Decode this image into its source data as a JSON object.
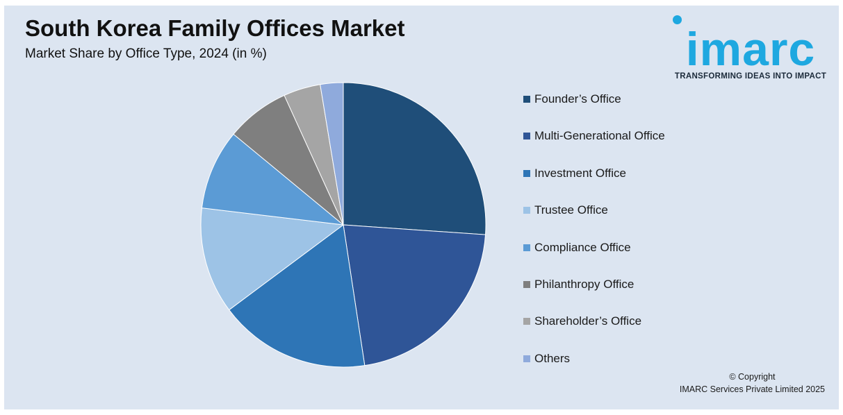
{
  "header": {
    "title": "South Korea Family Offices Market",
    "subtitle": "Market Share by Office Type, 2024 (in %)"
  },
  "logo": {
    "word": "imarc",
    "tagline": "TRANSFORMING IDEAS INTO IMPACT",
    "color": "#1ea8e0"
  },
  "footer": {
    "copyright_line1": "© Copyright",
    "copyright_line2": "IMARC Services Private Limited 2025"
  },
  "colors": {
    "background": "#dce5f1",
    "slice_border": "#ffffff"
  },
  "chart_data": {
    "type": "pie",
    "title": "South Korea Family Offices Market",
    "subtitle": "Market Share by Office Type, 2024 (in %)",
    "legend_position": "right",
    "start_angle_deg": 0,
    "direction": "clockwise",
    "categories": [
      "Founder’s Office",
      "Multi-Generational Office",
      "Investment Office",
      "Trustee Office",
      "Compliance Office",
      "Philanthropy Office",
      "Shareholder’s Office",
      "Others"
    ],
    "values": [
      26.1,
      21.5,
      17.2,
      12.1,
      9.1,
      7.2,
      4.2,
      2.6
    ],
    "colors": [
      "#1f4e79",
      "#2f5597",
      "#2e75b6",
      "#9dc3e6",
      "#5b9bd5",
      "#7f7f7f",
      "#a5a5a5",
      "#8faadc"
    ]
  }
}
